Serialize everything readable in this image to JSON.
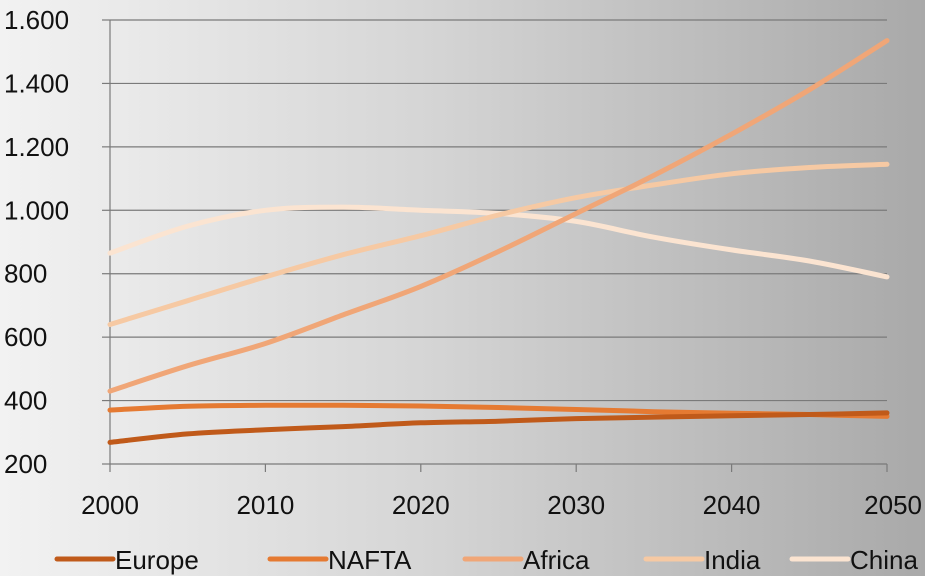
{
  "chart_data": {
    "type": "line",
    "title": "",
    "xlabel": "",
    "ylabel": "",
    "x": [
      2000,
      2005,
      2010,
      2015,
      2020,
      2025,
      2030,
      2035,
      2040,
      2045,
      2050
    ],
    "xticks": [
      2000,
      2010,
      2020,
      2030,
      2040,
      2050
    ],
    "xtick_labels": [
      "2000",
      "2010",
      "2020",
      "2030",
      "2040",
      "2050"
    ],
    "xlim": [
      2000,
      2050
    ],
    "yticks": [
      200,
      400,
      600,
      800,
      1000,
      1200,
      1400,
      1600
    ],
    "ytick_labels": [
      "200",
      "400",
      "600",
      "800",
      "1.000",
      "1.200",
      "1.400",
      "1.600"
    ],
    "ylim": [
      200,
      1600
    ],
    "grid": "horizontal",
    "legend_position": "bottom",
    "series": [
      {
        "name": "Europe",
        "color": "#c05a1a",
        "values": [
          268,
          295,
          308,
          318,
          330,
          335,
          343,
          348,
          352,
          356,
          361
        ]
      },
      {
        "name": "NAFTA",
        "color": "#e57a32",
        "values": [
          370,
          382,
          385,
          385,
          383,
          378,
          372,
          365,
          360,
          356,
          350
        ]
      },
      {
        "name": "Africa",
        "color": "#f0a677",
        "values": [
          430,
          510,
          580,
          670,
          760,
          870,
          990,
          1110,
          1240,
          1380,
          1535
        ]
      },
      {
        "name": "India",
        "color": "#f6c9a3",
        "values": [
          640,
          715,
          790,
          860,
          920,
          985,
          1040,
          1080,
          1115,
          1135,
          1145
        ]
      },
      {
        "name": "China",
        "color": "#fbe4d1",
        "values": [
          865,
          950,
          1000,
          1010,
          1000,
          990,
          965,
          915,
          875,
          840,
          790
        ]
      }
    ]
  }
}
